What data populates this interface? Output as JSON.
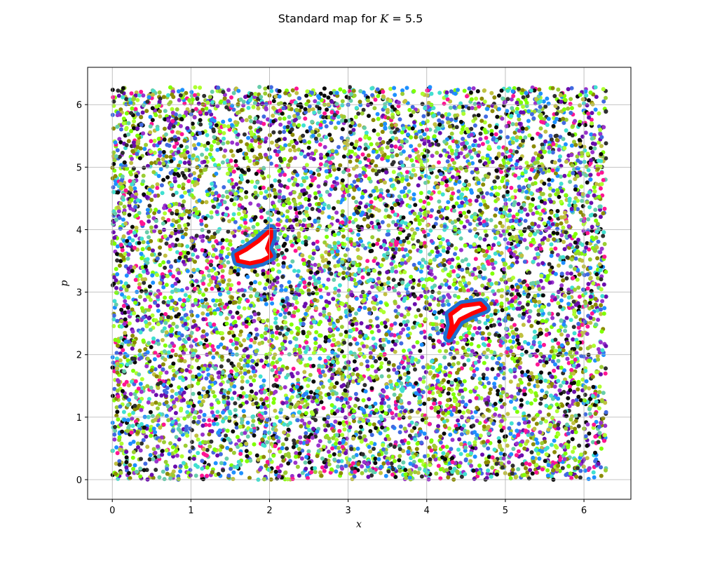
{
  "chart_data": {
    "type": "scatter",
    "title_prefix": "Standard map for ",
    "title_var": "K",
    "title_value": " = 5.5",
    "xlabel": "x",
    "ylabel": "p",
    "xlim": [
      -0.314,
      6.597
    ],
    "ylim": [
      -0.314,
      6.597
    ],
    "xticks": [
      0,
      1,
      2,
      3,
      4,
      5,
      6
    ],
    "yticks": [
      0,
      1,
      2,
      3,
      4,
      5,
      6
    ],
    "grid": true,
    "parameter_K": 5.5,
    "domain": [
      0,
      6.283
    ],
    "chaotic_sea_colors": [
      "#0a0a0a",
      "#9acd32",
      "#7fff00",
      "#6a0dad",
      "#1e90ff",
      "#ff1493",
      "#40e0d0",
      "#adff2f",
      "#8b8b00",
      "#4169e1",
      "#c0c040",
      "#2f2f2f",
      "#66cdaa",
      "#9932cc"
    ],
    "islands": [
      {
        "fill": "#ffffff",
        "border": "#ff0000",
        "halo": "#1e6fd0",
        "outline": [
          [
            1.58,
            3.6
          ],
          [
            1.6,
            3.5
          ],
          [
            1.75,
            3.46
          ],
          [
            1.9,
            3.5
          ],
          [
            2.02,
            3.58
          ],
          [
            1.97,
            3.7
          ],
          [
            2.02,
            3.88
          ],
          [
            2.02,
            4.0
          ],
          [
            1.86,
            3.82
          ],
          [
            1.7,
            3.68
          ]
        ]
      },
      {
        "fill": "#ffffff",
        "border": "#ff0000",
        "halo": "#1e6fd0",
        "outline": [
          [
            4.28,
            2.28
          ],
          [
            4.32,
            2.48
          ],
          [
            4.3,
            2.64
          ],
          [
            4.45,
            2.78
          ],
          [
            4.68,
            2.82
          ],
          [
            4.74,
            2.74
          ],
          [
            4.58,
            2.66
          ],
          [
            4.42,
            2.56
          ]
        ]
      }
    ]
  }
}
